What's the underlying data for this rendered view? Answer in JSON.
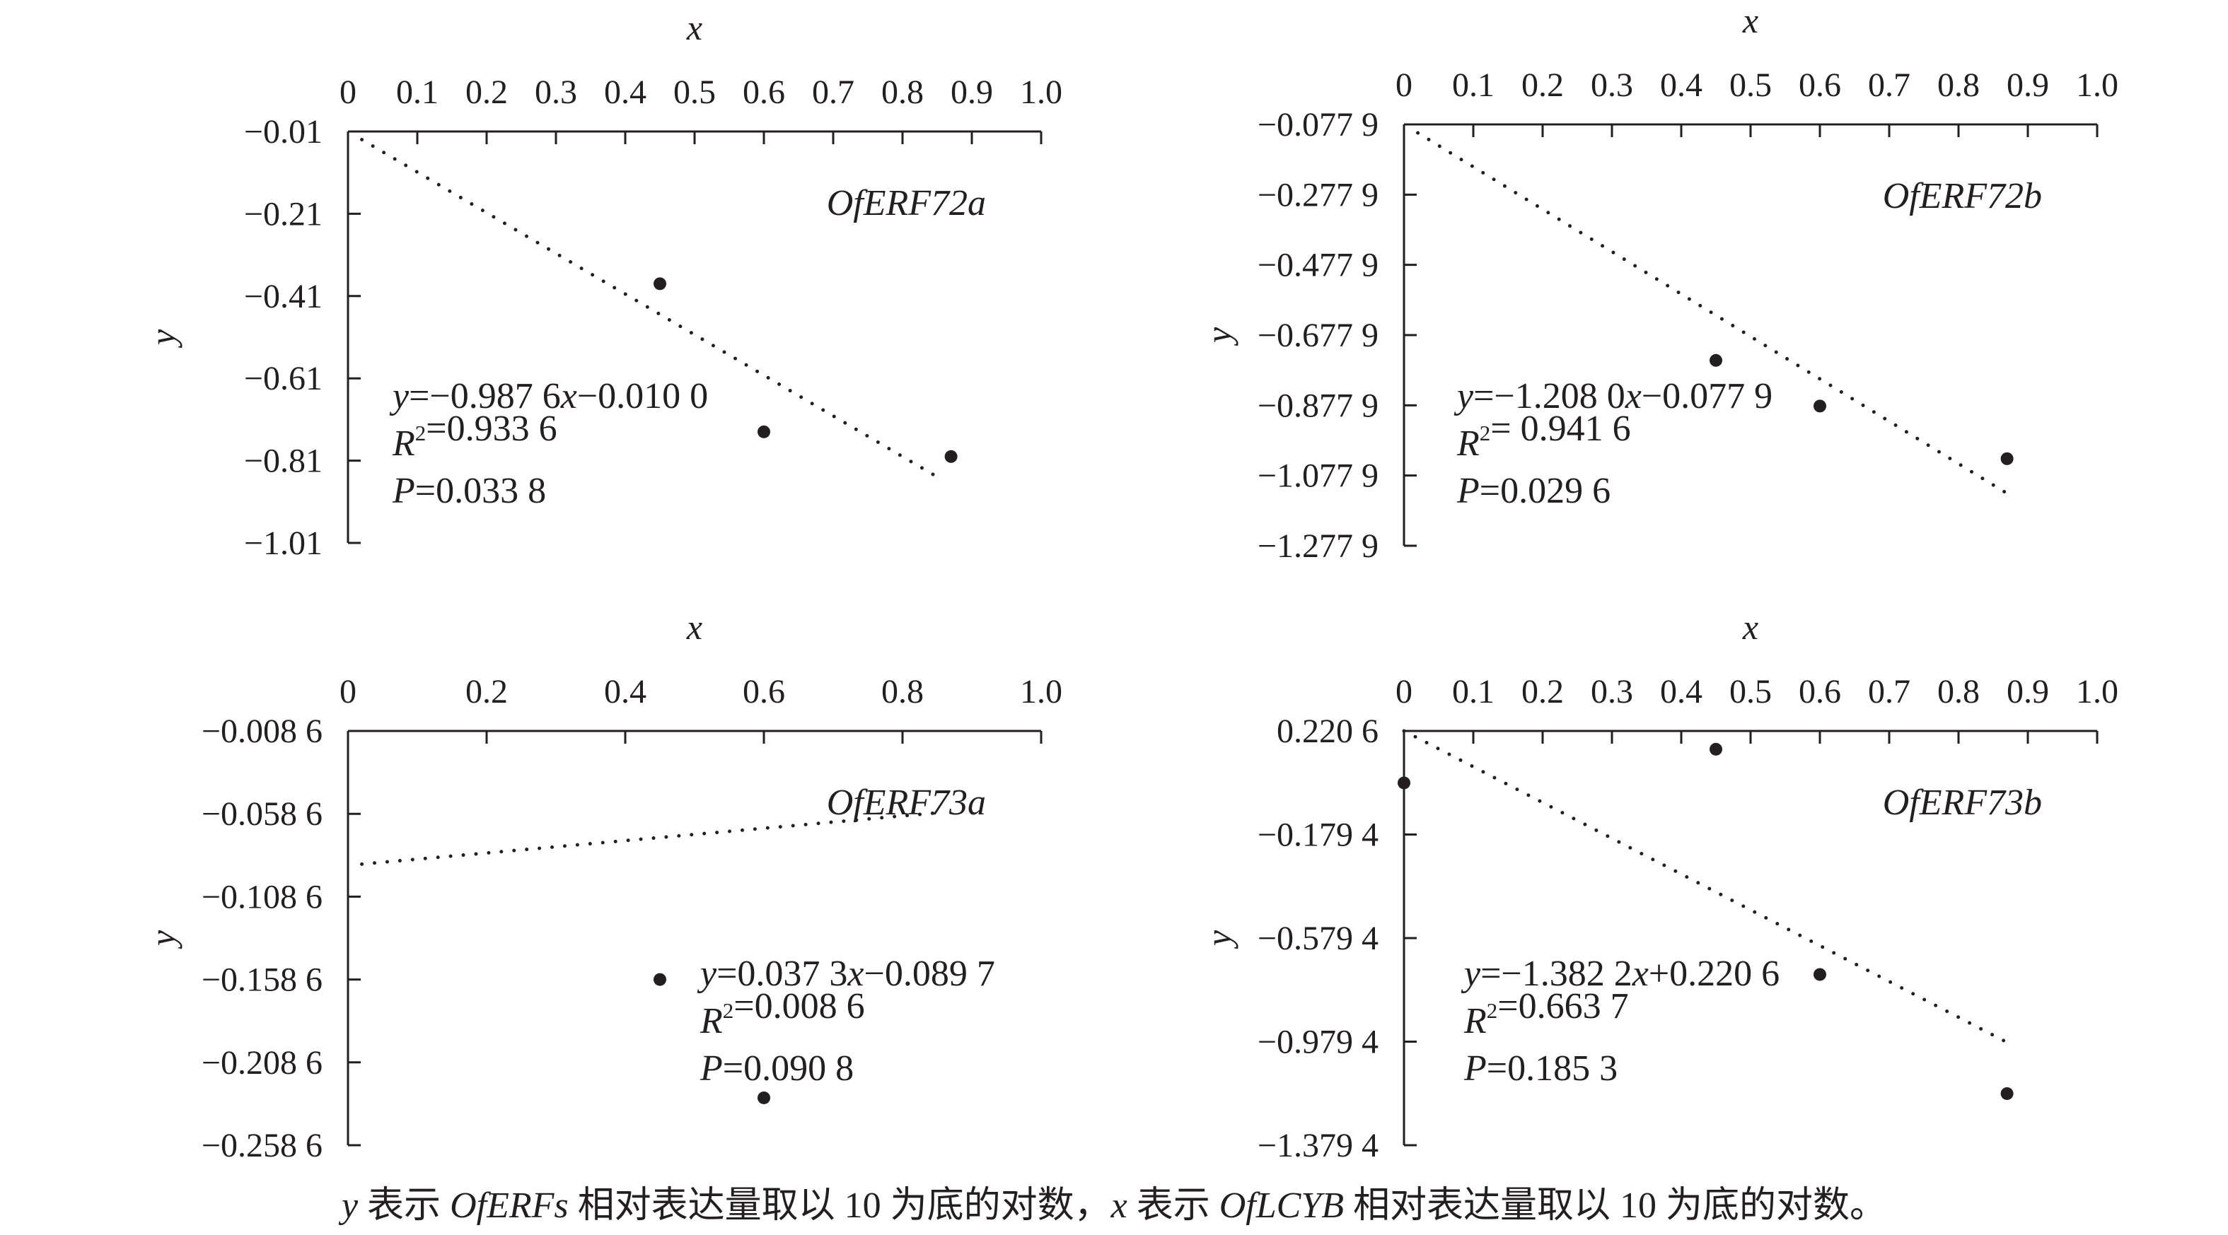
{
  "colors": {
    "ink": "#231f20",
    "background": "#ffffff"
  },
  "chart_data": [
    {
      "type": "scatter",
      "title": "OfERF72a",
      "xlabel": "x",
      "ylabel": "y",
      "x_ticks": [
        "0",
        "0.1",
        "0.2",
        "0.3",
        "0.4",
        "0.5",
        "0.6",
        "0.7",
        "0.8",
        "0.9",
        "1.0"
      ],
      "y_ticks": [
        "−0.01",
        "−0.21",
        "−0.41",
        "−0.61",
        "−0.81",
        "−1.01"
      ],
      "xlim": [
        0,
        1.0
      ],
      "ylim": [
        -1.01,
        -0.01
      ],
      "points": [
        {
          "x": 0.45,
          "y": -0.38
        },
        {
          "x": 0.6,
          "y": -0.74
        },
        {
          "x": 0.87,
          "y": -0.8
        }
      ],
      "trendline": {
        "slope": -0.9876,
        "intercept": -0.01,
        "x_range": [
          0.02,
          0.85
        ],
        "style": "dotted"
      },
      "annotation": [
        "y=−0.987 6x−0.010 0",
        "R2=0.933 6",
        "P=0.033 8"
      ]
    },
    {
      "type": "scatter",
      "title": "OfERF72b",
      "xlabel": "x",
      "ylabel": "y",
      "x_ticks": [
        "0",
        "0.1",
        "0.2",
        "0.3",
        "0.4",
        "0.5",
        "0.6",
        "0.7",
        "0.8",
        "0.9",
        "1.0"
      ],
      "y_ticks": [
        "−0.077 9",
        "−0.277 9",
        "−0.477 9",
        "−0.677 9",
        "−0.877 9",
        "−1.077 9",
        "−1.277 9"
      ],
      "xlim": [
        0,
        1.0
      ],
      "ylim": [
        -1.2779,
        -0.0779
      ],
      "points": [
        {
          "x": 0.45,
          "y": -0.75
        },
        {
          "x": 0.6,
          "y": -0.88
        },
        {
          "x": 0.87,
          "y": -1.03
        }
      ],
      "trendline": {
        "slope": -1.208,
        "intercept": -0.0779,
        "x_range": [
          0.02,
          0.87
        ],
        "style": "dotted"
      },
      "annotation": [
        "y=−1.208 0x−0.077 9",
        "R2= 0.941 6",
        "P=0.029 6"
      ]
    },
    {
      "type": "scatter",
      "title": "OfERF73a",
      "xlabel": "x",
      "ylabel": "y",
      "x_ticks": [
        "0",
        "0.2",
        "0.4",
        "0.6",
        "0.8",
        "1.0"
      ],
      "y_ticks": [
        "−0.008 6",
        "−0.058 6",
        "−0.108 6",
        "−0.158 6",
        "−0.208 6",
        "−0.258 6"
      ],
      "xlim": [
        0,
        1.0
      ],
      "ylim": [
        -0.2586,
        -0.0086
      ],
      "points": [
        {
          "x": 0.45,
          "y": -0.1586
        },
        {
          "x": 0.6,
          "y": -0.23
        }
      ],
      "trendline": {
        "slope": 0.0373,
        "intercept": -0.0897,
        "x_range": [
          0.02,
          0.85
        ],
        "style": "dotted"
      },
      "annotation": [
        "y=0.037 3x−0.089 7",
        "R2=0.008 6",
        "P=0.090 8"
      ]
    },
    {
      "type": "scatter",
      "title": "OfERF73b",
      "xlabel": "x",
      "ylabel": "y",
      "x_ticks": [
        "0",
        "0.1",
        "0.2",
        "0.3",
        "0.4",
        "0.5",
        "0.6",
        "0.7",
        "0.8",
        "0.9",
        "1.0"
      ],
      "y_ticks": [
        "0.220 6",
        "−0.179 4",
        "−0.579 4",
        "−0.979 4",
        "−1.379 4"
      ],
      "xlim": [
        0,
        1.0
      ],
      "ylim": [
        -1.3794,
        0.2206
      ],
      "points": [
        {
          "x": 0.0,
          "y": 0.02
        },
        {
          "x": 0.45,
          "y": 0.15
        },
        {
          "x": 0.6,
          "y": -0.72
        },
        {
          "x": 0.87,
          "y": -1.18
        }
      ],
      "trendline": {
        "slope": -1.3822,
        "intercept": 0.2206,
        "x_range": [
          0.0,
          0.87
        ],
        "style": "dotted"
      },
      "annotation": [
        "y=−1.382 2x+0.220 6",
        "R2=0.663 7",
        "P=0.185 3"
      ]
    }
  ],
  "caption": {
    "p1": "y",
    "p2": " 表示 ",
    "p3": "OfERFs",
    "p4": " 相对表达量取以 10 为底的对数，",
    "p5": "x",
    "p6": " 表示 ",
    "p7": "OfLCYB",
    "p8": " 相对表达量取以 10 为底的对数。"
  }
}
